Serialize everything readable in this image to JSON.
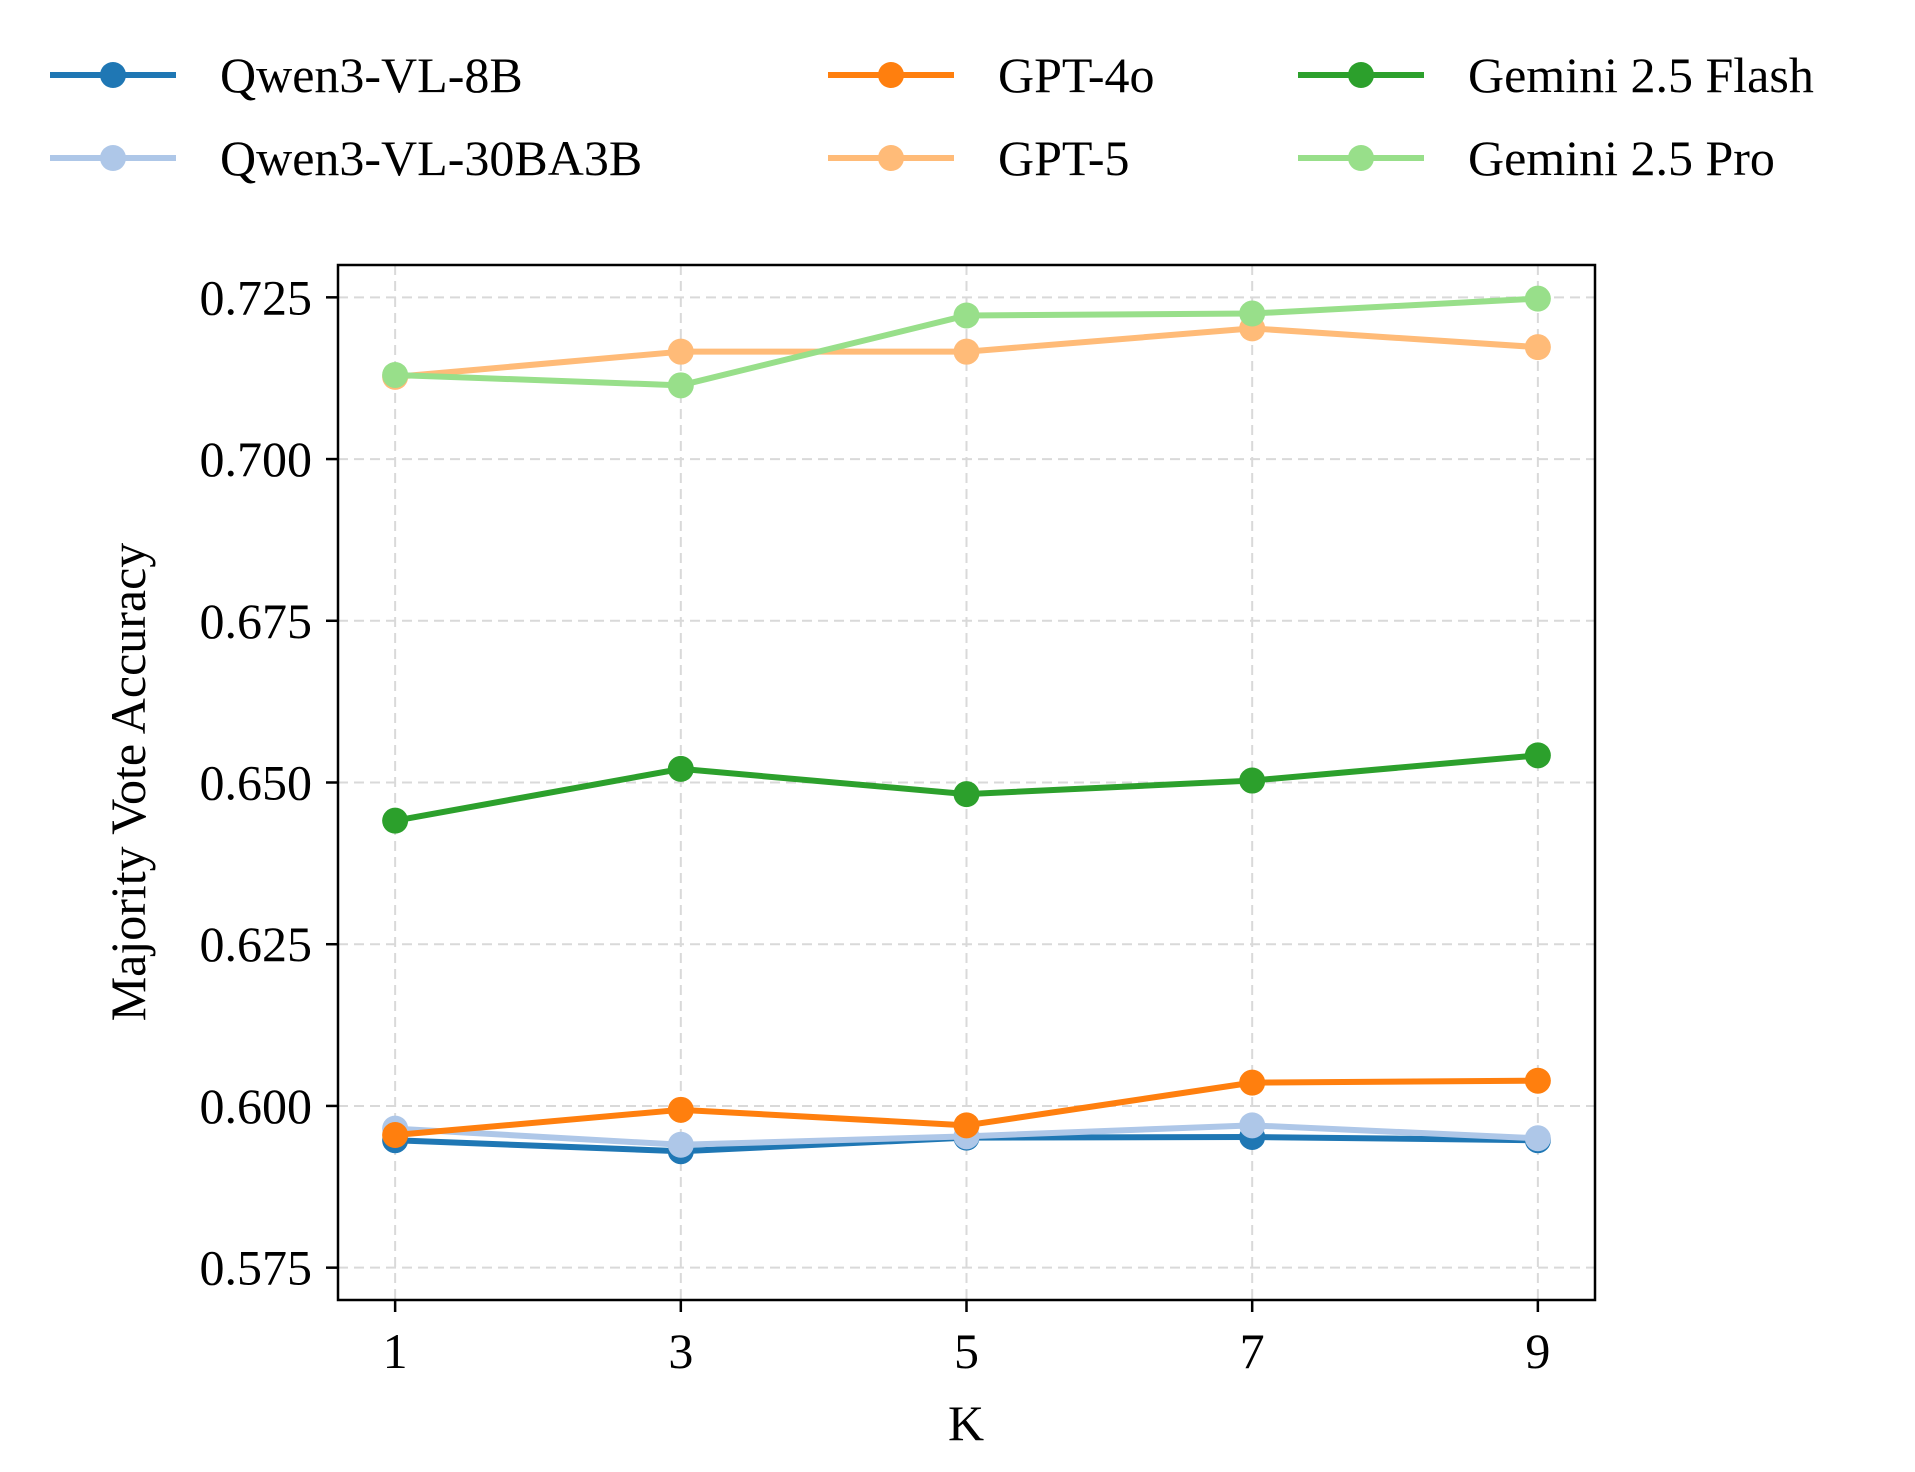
{
  "chart_data": {
    "type": "line",
    "title": "",
    "xlabel": "K",
    "ylabel": "Majority Vote Accuracy",
    "x": [
      1,
      3,
      5,
      7,
      9
    ],
    "x_tick_labels": [
      "1",
      "3",
      "5",
      "7",
      "9"
    ],
    "xlim": [
      0.6,
      9.4
    ],
    "ylim": [
      0.57,
      0.73
    ],
    "y_ticks": [
      0.575,
      0.6,
      0.625,
      0.65,
      0.675,
      0.7,
      0.725
    ],
    "y_tick_labels": [
      "0.575",
      "0.600",
      "0.625",
      "0.650",
      "0.675",
      "0.700",
      "0.725"
    ],
    "grid": true,
    "legend_position": "top, outside plot, 3 columns",
    "series": [
      {
        "name": "Qwen3-VL-8B",
        "color": "#1f77b4",
        "values": [
          0.5947,
          0.593,
          0.5951,
          0.5952,
          0.5947
        ]
      },
      {
        "name": "Qwen3-VL-30BA3B",
        "color": "#aec7e8",
        "values": [
          0.5965,
          0.594,
          0.5953,
          0.597,
          0.595
        ]
      },
      {
        "name": "GPT-4o",
        "color": "#ff7f0e",
        "values": [
          0.5955,
          0.5994,
          0.597,
          0.6036,
          0.6039
        ]
      },
      {
        "name": "GPT-5",
        "color": "#ffbb78",
        "values": [
          0.7127,
          0.7166,
          0.7166,
          0.7202,
          0.7173
        ]
      },
      {
        "name": "Gemini 2.5 Flash",
        "color": "#2ca02c",
        "values": [
          0.6441,
          0.6521,
          0.6482,
          0.6503,
          0.6542
        ]
      },
      {
        "name": "Gemini 2.5 Pro",
        "color": "#98df8a",
        "values": [
          0.713,
          0.7114,
          0.7222,
          0.7225,
          0.7248
        ]
      }
    ]
  }
}
